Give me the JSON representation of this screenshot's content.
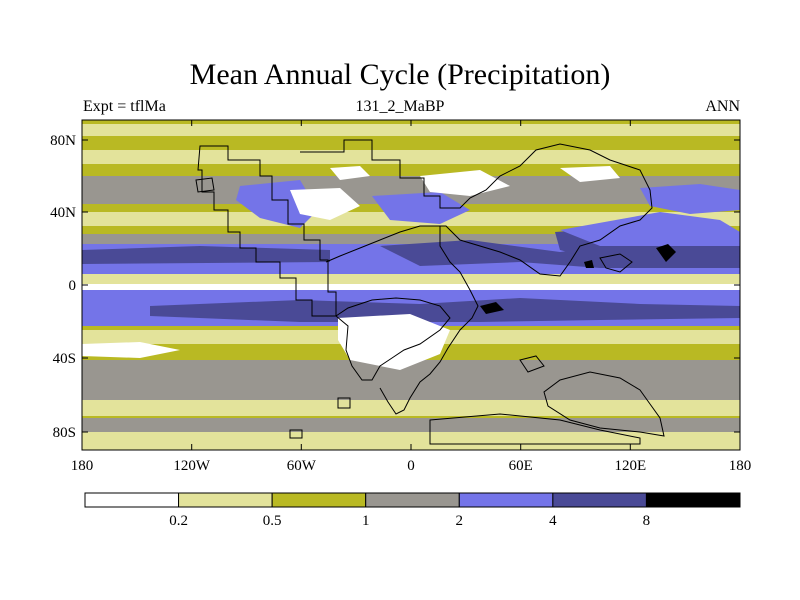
{
  "header": {
    "title": "Mean Annual Cycle (Precipitation)",
    "experiment": "Expt = tflMa",
    "run_id": "131_2_MaBP",
    "season": "ANN"
  },
  "axes": {
    "x_ticks": [
      "180",
      "120W",
      "60W",
      "0",
      "60E",
      "120E",
      "180"
    ],
    "y_ticks": [
      "80N",
      "40N",
      "0",
      "40S",
      "80S"
    ]
  },
  "legend": {
    "colors": [
      "#ffffff",
      "#e3e39b",
      "#b9b923",
      "#999690",
      "#7474e8",
      "#4a4a96",
      "#000000"
    ],
    "labels": [
      "0.2",
      "0.5",
      "1",
      "2",
      "4",
      "8"
    ]
  },
  "palette": {
    "outline": "#000000"
  }
}
